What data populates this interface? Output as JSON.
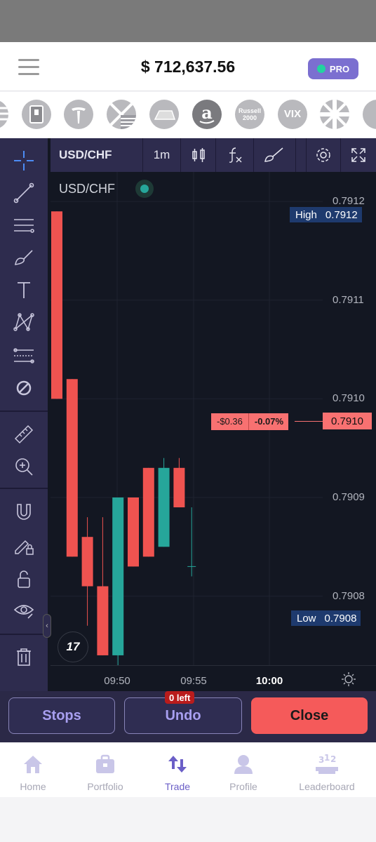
{
  "header": {
    "balance": "$ 712,637.56",
    "pro_label": "PRO",
    "pro_dot_color": "#22d3a0"
  },
  "assets": [
    {
      "name": "flag-stripes-icon"
    },
    {
      "name": "device-icon"
    },
    {
      "name": "tesla-logo-icon"
    },
    {
      "name": "uk-us-flags-icon"
    },
    {
      "name": "gold-bar-icon"
    },
    {
      "name": "amazon-logo-icon"
    },
    {
      "name": "russell-2000-icon",
      "text": "Russell 2000"
    },
    {
      "name": "vix-icon",
      "text": "VIX"
    },
    {
      "name": "uk-flag-icon"
    },
    {
      "name": "partial-asset-icon"
    }
  ],
  "chart_header": {
    "symbol": "USD/CHF",
    "interval": "1m"
  },
  "chart": {
    "legend_symbol": "USD/CHF",
    "high_label": "High",
    "high_value": "0.7912",
    "low_label": "Low",
    "low_value": "0.7908",
    "current_price": "0.7910",
    "pnl_amount": "-$0.36",
    "pnl_percent": "-0.07%",
    "logo_text": "17"
  },
  "chart_data": {
    "type": "candlestick",
    "y_ticks": [
      "0.7912",
      "0.7911",
      "0.7910",
      "0.7909",
      "0.7908"
    ],
    "x_ticks": [
      "09:50",
      "09:55",
      "10:00"
    ],
    "ylim": [
      0.79073,
      0.79123
    ],
    "up_color": "#26a69a",
    "down_color": "#ef5350",
    "candles": [
      {
        "open": 0.79119,
        "high": 0.79119,
        "low": 0.791,
        "close": 0.791
      },
      {
        "open": 0.79102,
        "high": 0.79102,
        "low": 0.79084,
        "close": 0.79084
      },
      {
        "open": 0.79086,
        "high": 0.79088,
        "low": 0.79077,
        "close": 0.79081
      },
      {
        "open": 0.79081,
        "high": 0.79088,
        "low": 0.79074,
        "close": 0.79074
      },
      {
        "open": 0.79074,
        "high": 0.7909,
        "low": 0.79073,
        "close": 0.7909
      },
      {
        "open": 0.7909,
        "high": 0.7909,
        "low": 0.79083,
        "close": 0.79083
      },
      {
        "open": 0.79093,
        "high": 0.79093,
        "low": 0.79084,
        "close": 0.79084
      },
      {
        "open": 0.79085,
        "high": 0.79094,
        "low": 0.79085,
        "close": 0.79093
      },
      {
        "open": 0.79093,
        "high": 0.79094,
        "low": 0.79089,
        "close": 0.79089
      }
    ]
  },
  "actions": {
    "stops": "Stops",
    "undo": "Undo",
    "undo_badge": "0 left",
    "close": "Close"
  },
  "nav": {
    "home": "Home",
    "portfolio": "Portfolio",
    "trade": "Trade",
    "profile": "Profile",
    "leaderboard": "Leaderboard"
  }
}
